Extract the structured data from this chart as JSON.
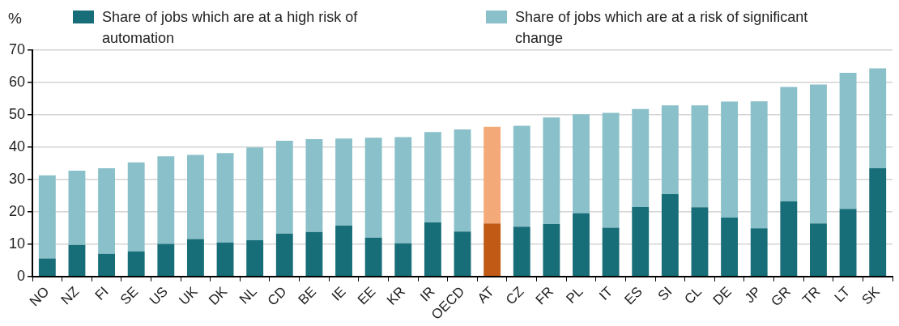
{
  "chart_data": {
    "type": "bar",
    "stacked": true,
    "ylabel": "%",
    "legend": "top",
    "grid": "y",
    "categories": [
      "NO",
      "NZ",
      "FI",
      "SE",
      "US",
      "UK",
      "DK",
      "NL",
      "CD",
      "BE",
      "IE",
      "EE",
      "KR",
      "IR",
      "OECD",
      "AT",
      "CZ",
      "FR",
      "PL",
      "IT",
      "ES",
      "SI",
      "CL",
      "DE",
      "JP",
      "GR",
      "TR",
      "LT",
      "SK"
    ],
    "ylim": [
      0,
      70
    ],
    "yticks": [
      0,
      10,
      20,
      30,
      40,
      50,
      60,
      70
    ],
    "series": [
      {
        "name": "Share of jobs which are at a high risk of automation",
        "color": "#176d78",
        "colors": [
          "#176d78",
          "#176d78",
          "#176d78",
          "#176d78",
          "#176d78",
          "#176d78",
          "#176d78",
          "#176d78",
          "#176d78",
          "#176d78",
          "#176d78",
          "#176d78",
          "#176d78",
          "#176d78",
          "#176d78",
          "#c05a14",
          "#176d78",
          "#176d78",
          "#176d78",
          "#176d78",
          "#176d78",
          "#176d78",
          "#176d78",
          "#176d78",
          "#176d78",
          "#176d78",
          "#176d78",
          "#176d78",
          "#176d78"
        ],
        "values": [
          5.6,
          9.8,
          7.0,
          7.8,
          10.1,
          11.6,
          10.5,
          11.2,
          13.3,
          13.8,
          15.8,
          12.0,
          10.3,
          16.7,
          13.9,
          16.4,
          15.4,
          16.2,
          19.6,
          15.1,
          21.5,
          25.5,
          21.4,
          18.2,
          14.9,
          23.2,
          16.4,
          20.9,
          33.5
        ]
      },
      {
        "name": "Share of jobs which are at a risk of significant change",
        "color": "#89c0c9",
        "colors": [
          "#89c0c9",
          "#89c0c9",
          "#89c0c9",
          "#89c0c9",
          "#89c0c9",
          "#89c0c9",
          "#89c0c9",
          "#89c0c9",
          "#89c0c9",
          "#89c0c9",
          "#89c0c9",
          "#89c0c9",
          "#89c0c9",
          "#89c0c9",
          "#89c0c9",
          "#f3aa78",
          "#89c0c9",
          "#89c0c9",
          "#89c0c9",
          "#89c0c9",
          "#89c0c9",
          "#89c0c9",
          "#89c0c9",
          "#89c0c9",
          "#89c0c9",
          "#89c0c9",
          "#89c0c9",
          "#89c0c9",
          "#89c0c9"
        ],
        "values": [
          25.7,
          22.9,
          26.5,
          27.5,
          27.1,
          26.0,
          27.7,
          28.7,
          28.7,
          28.7,
          26.9,
          30.9,
          32.8,
          28.0,
          31.6,
          29.9,
          31.2,
          33.0,
          30.6,
          35.5,
          30.3,
          27.4,
          31.5,
          35.9,
          39.3,
          35.4,
          43.0,
          42.1,
          30.9
        ]
      }
    ]
  }
}
